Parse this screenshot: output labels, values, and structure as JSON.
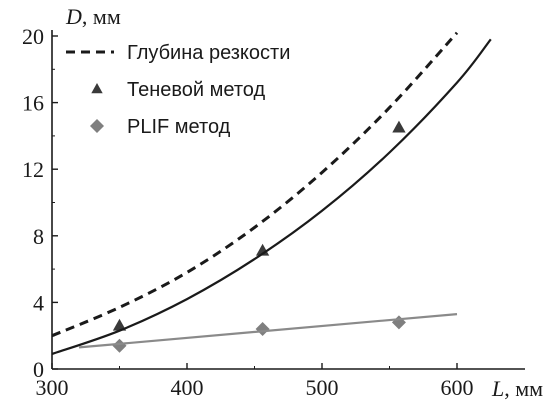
{
  "chart_data": {
    "type": "line",
    "title": "",
    "xlabel": {
      "var": "L",
      "unit": ", мм"
    },
    "ylabel": {
      "var": "D",
      "unit": ", мм"
    },
    "xlim": [
      300,
      640
    ],
    "ylim": [
      0,
      20
    ],
    "xticks": [
      300,
      400,
      500,
      600
    ],
    "yticks": [
      0,
      4,
      8,
      12,
      16,
      20
    ],
    "grid": false,
    "legend_position": "top-left",
    "series": [
      {
        "name": "Глубина резкости",
        "kind": "dashed-line",
        "color": "#1a1a1a",
        "x": [
          300,
          350,
          400,
          450,
          500,
          550,
          600
        ],
        "y": [
          2.0,
          3.7,
          5.8,
          8.5,
          11.8,
          15.7,
          20.2
        ]
      },
      {
        "name": "Теневой метод",
        "kind": "markers",
        "marker": "triangle",
        "color": "#3a3a3a",
        "x": [
          350,
          456,
          557
        ],
        "y": [
          2.6,
          7.1,
          14.5
        ]
      },
      {
        "name": "",
        "kind": "solid-line",
        "color": "#1a1a1a",
        "x": [
          300,
          350,
          400,
          450,
          500,
          550,
          600,
          625
        ],
        "y": [
          0.9,
          2.3,
          4.2,
          6.6,
          9.5,
          13.0,
          17.2,
          19.8
        ]
      },
      {
        "name": "PLIF метод",
        "kind": "markers",
        "marker": "diamond",
        "color": "#7f7f7f",
        "x": [
          350,
          456,
          557
        ],
        "y": [
          1.4,
          2.4,
          2.8
        ]
      },
      {
        "name": "",
        "kind": "solid-line",
        "color": "#8a8a8a",
        "x": [
          320,
          600
        ],
        "y": [
          1.3,
          3.3
        ]
      }
    ]
  }
}
